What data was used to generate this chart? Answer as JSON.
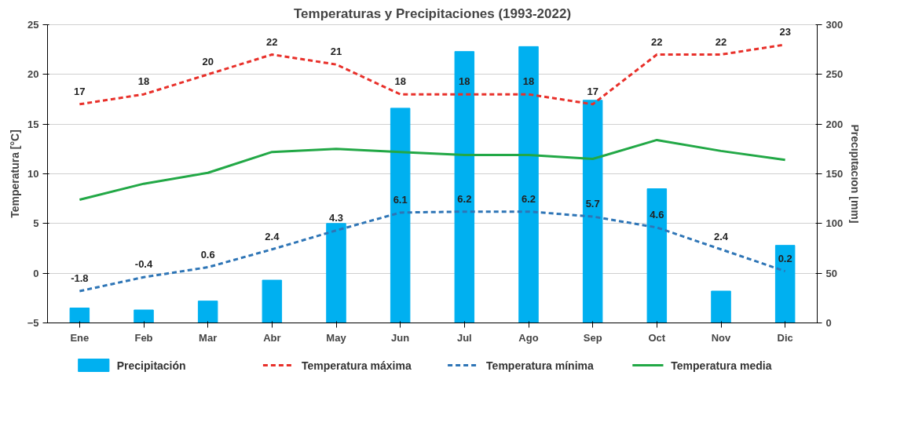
{
  "chart_data": {
    "type": "line",
    "title": "Temperaturas y Precipitaciones (1993-2022)",
    "ylabel": "Temperatura [°C]",
    "y2label": "Precipitación [mm]",
    "categories": [
      "Ene",
      "Feb",
      "Mar",
      "Abr",
      "May",
      "Jun",
      "Jul",
      "Ago",
      "Sep",
      "Oct",
      "Nov",
      "Dic"
    ],
    "series": [
      {
        "name": "Precipitación",
        "type": "bar",
        "axis": "y2",
        "color": "#00b0f0",
        "values": [
          15,
          13,
          22,
          43,
          100,
          216,
          273,
          278,
          224,
          135,
          32,
          78
        ]
      },
      {
        "name": "Temperatura máxima",
        "line_style": "dashed",
        "color": "#e8302a",
        "values": [
          17,
          18,
          20,
          22,
          21,
          18,
          18,
          18,
          17,
          22,
          22,
          23
        ],
        "value_labels": [
          "17",
          "18",
          "20",
          "22",
          "21",
          "18",
          "18",
          "18",
          "17",
          "22",
          "22",
          "23"
        ]
      },
      {
        "name": "Temperatura mínima",
        "line_style": "dashed",
        "color": "#2e75b6",
        "values": [
          -1.8,
          -0.4,
          0.6,
          2.4,
          4.3,
          6.1,
          6.2,
          6.2,
          5.7,
          4.6,
          2.4,
          0.2
        ],
        "value_labels": [
          "-1.8",
          "-0.4",
          "0.6",
          "2.4",
          "4.3",
          "6.1",
          "6.2",
          "6.2",
          "5.7",
          "4.6",
          "2.4",
          "0.2"
        ]
      },
      {
        "name": "Temperatura media",
        "line_style": "solid",
        "color": "#22a846",
        "values": [
          7.4,
          9.0,
          10.1,
          12.2,
          12.5,
          12.2,
          11.9,
          11.9,
          11.5,
          13.4,
          12.3,
          11.4
        ]
      }
    ],
    "ylim": [
      -5,
      25
    ],
    "yticks": [
      -5,
      0,
      5,
      10,
      15,
      20,
      25
    ],
    "y2lim": [
      0,
      300
    ],
    "y2ticks": [
      0,
      50,
      100,
      150,
      200,
      250,
      300
    ],
    "grid": "y",
    "legend": "bottom",
    "marker": "none"
  }
}
